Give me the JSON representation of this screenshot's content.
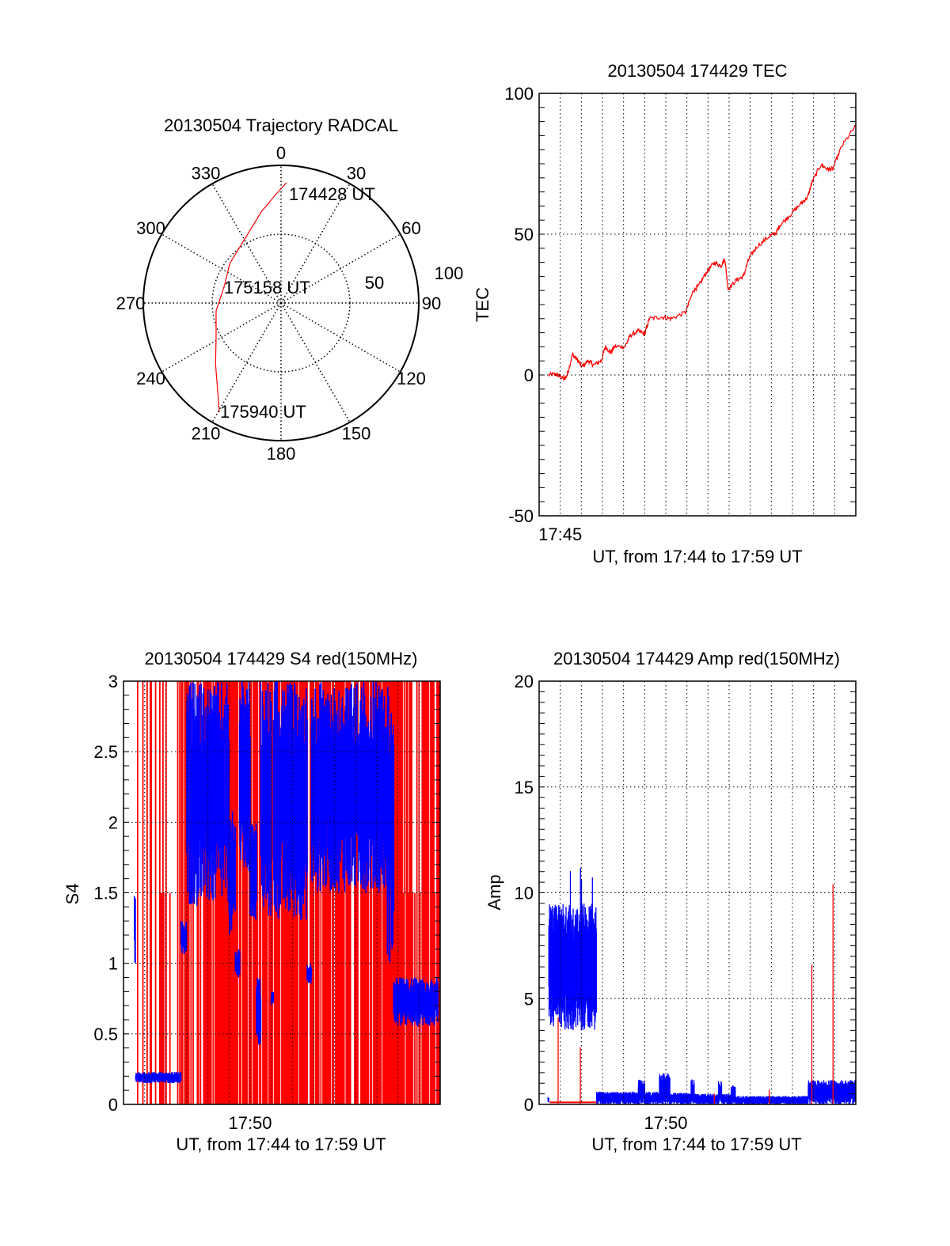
{
  "colors": {
    "primary_series": "#ff0000",
    "secondary_series": "#0000ff",
    "axes": "#000000"
  },
  "chart_data": [
    {
      "id": "trajectory",
      "type": "polar",
      "title": "20130504 Trajectory RADCAL",
      "angle_tick_labels": [
        "0",
        "30",
        "60",
        "90",
        "120",
        "150",
        "180",
        "210",
        "240",
        "270",
        "300",
        "330"
      ],
      "angle_ticks_deg": [
        0,
        30,
        60,
        90,
        120,
        150,
        180,
        210,
        240,
        270,
        300,
        330
      ],
      "radial_tick_labels": [
        "50",
        "100"
      ],
      "rlim": [
        0,
        100
      ],
      "grid": true,
      "trajectory": {
        "color": "#ff0000",
        "points": [
          {
            "az": 2.6,
            "r": 87.5
          },
          {
            "az": 356.6,
            "r": 78
          },
          {
            "az": 348,
            "r": 68
          },
          {
            "az": 331.5,
            "r": 54
          },
          {
            "az": 307.6,
            "r": 47
          },
          {
            "az": 288,
            "r": 43
          },
          {
            "az": 263,
            "r": 47.5
          },
          {
            "az": 241.8,
            "r": 53.5
          },
          {
            "az": 227,
            "r": 65
          },
          {
            "az": 209.5,
            "r": 91
          }
        ],
        "annotations": [
          "174428 UT",
          "175158 UT",
          "175940 UT"
        ]
      }
    },
    {
      "id": "tec",
      "type": "line",
      "title": "20130504 174429 TEC",
      "xlabel": "UT, from 17:44 to 17:59 UT",
      "ylabel": "TEC",
      "x_unit": "minutes after 17:44",
      "xlim": [
        0,
        15
      ],
      "ylim": [
        -50,
        100
      ],
      "y_ticks": [
        -50,
        0,
        50,
        100
      ],
      "y_tick_labels": [
        "-50",
        "0",
        "50",
        "100"
      ],
      "y_minor_step": 5,
      "x_ticks": [
        1
      ],
      "x_tick_labels": [
        "17:45"
      ],
      "grid": true,
      "series": [
        {
          "name": "TEC",
          "color": "#ff0000",
          "x": [
            0.46,
            0.8,
            1.0,
            1.21,
            1.33,
            1.58,
            1.8,
            2.02,
            2.33,
            2.58,
            2.95,
            3.14,
            3.39,
            3.57,
            4.07,
            4.32,
            4.69,
            5.0,
            5.22,
            5.81,
            6.25,
            6.93,
            7.31,
            7.56,
            7.93,
            8.3,
            8.61,
            8.8,
            8.95,
            9.36,
            9.67,
            9.92,
            10.29,
            10.91,
            11.22,
            11.41,
            11.91,
            12.41,
            12.72,
            12.91,
            13.35,
            13.66,
            13.91,
            14.34,
            15.0
          ],
          "y": [
            0,
            0.3,
            -0.5,
            -1.5,
            0,
            7.3,
            5.5,
            2.9,
            5.1,
            3.5,
            5.1,
            10.1,
            7.9,
            10.1,
            10.1,
            14,
            15.6,
            14.5,
            20,
            20.6,
            20,
            22.2,
            30,
            31.6,
            36.6,
            39.9,
            38.8,
            41.2,
            30.5,
            33.8,
            34.9,
            41,
            45.4,
            49.3,
            50.4,
            53.2,
            57,
            60.9,
            63.1,
            68.1,
            74.7,
            73.1,
            73.1,
            81.3,
            88.5
          ]
        }
      ]
    },
    {
      "id": "s4",
      "type": "bar",
      "title": "20130504 174429 S4 red(150MHz)",
      "xlabel": "UT, from 17:44 to 17:59 UT",
      "ylabel": "S4",
      "x_unit": "minutes after 17:44",
      "xlim": [
        0,
        15
      ],
      "ylim": [
        0,
        3
      ],
      "y_ticks": [
        0,
        0.5,
        1,
        1.5,
        2,
        2.5,
        3
      ],
      "y_tick_labels": [
        "0",
        "0.5",
        "1",
        "1.5",
        "2",
        "2.5",
        "3"
      ],
      "y_minor_step": 0.1,
      "x_ticks": [
        6
      ],
      "x_tick_labels": [
        "17:50"
      ],
      "grid": true,
      "series": [
        {
          "name": "red",
          "color": "#ff0000",
          "style": "vertical-lines",
          "bands": [
            {
              "t0": 0.52,
              "t1": 2.75,
              "density": 0.3,
              "top": 3
            },
            {
              "t0": 1.4,
              "t1": 2.2,
              "density": 0.3,
              "top": 1.5
            },
            {
              "t0": 2.75,
              "t1": 6.8,
              "density": 0.75,
              "top": 3
            },
            {
              "t0": 6.8,
              "t1": 15,
              "density": 0.78,
              "top": 3
            },
            {
              "t0": 12.4,
              "t1": 14.8,
              "density": 0.5,
              "top": 1.5
            }
          ]
        },
        {
          "name": "blue",
          "color": "#0000ff",
          "style": "envelope",
          "segments": [
            {
              "t0": 0.52,
              "t1": 0.58,
              "lo": 1.0,
              "hi": 1.57
            },
            {
              "t0": 0.58,
              "t1": 2.73,
              "lo": 0.15,
              "hi": 0.23
            },
            {
              "t0": 2.73,
              "t1": 3.0,
              "lo": 1.05,
              "hi": 1.3
            },
            {
              "t0": 3.0,
              "t1": 5.0,
              "lo": 1.4,
              "hi": 3.0
            },
            {
              "t0": 5.0,
              "t1": 5.3,
              "lo": 1.2,
              "hi": 2.1
            },
            {
              "t0": 5.3,
              "t1": 5.5,
              "lo": 0.9,
              "hi": 1.1
            },
            {
              "t0": 5.5,
              "t1": 6.0,
              "lo": 1.6,
              "hi": 3.0
            },
            {
              "t0": 6.0,
              "t1": 6.3,
              "lo": 1.3,
              "hi": 2.0
            },
            {
              "t0": 6.3,
              "t1": 6.5,
              "lo": 0.4,
              "hi": 0.9
            },
            {
              "t0": 6.5,
              "t1": 7.0,
              "lo": 1.3,
              "hi": 3.0
            },
            {
              "t0": 7.0,
              "t1": 7.1,
              "lo": 0.7,
              "hi": 0.8
            },
            {
              "t0": 7.1,
              "t1": 8.7,
              "lo": 1.3,
              "hi": 3.0
            },
            {
              "t0": 8.7,
              "t1": 8.9,
              "lo": 0.85,
              "hi": 1.0
            },
            {
              "t0": 8.9,
              "t1": 12.5,
              "lo": 1.5,
              "hi": 3.0
            },
            {
              "t0": 12.5,
              "t1": 12.8,
              "lo": 1.0,
              "hi": 3.0
            },
            {
              "t0": 12.8,
              "t1": 14.9,
              "lo": 0.55,
              "hi": 0.9
            }
          ]
        }
      ]
    },
    {
      "id": "amp",
      "type": "bar",
      "title": "20130504 174429 Amp red(150MHz)",
      "xlabel": "UT, from 17:44 to 17:59 UT",
      "ylabel": "Amp",
      "x_unit": "minutes after 17:44",
      "xlim": [
        0,
        15
      ],
      "ylim": [
        0,
        20
      ],
      "y_ticks": [
        0,
        5,
        10,
        15,
        20
      ],
      "y_tick_labels": [
        "0",
        "5",
        "10",
        "15",
        "20"
      ],
      "y_minor_step": 0.5,
      "x_ticks": [
        6
      ],
      "x_tick_labels": [
        "17:50"
      ],
      "grid": true,
      "series": [
        {
          "name": "blue",
          "color": "#0000ff",
          "style": "envelope",
          "segments": [
            {
              "t0": 0.42,
              "t1": 0.46,
              "lo": 0,
              "hi": 0.4
            },
            {
              "t0": 0.46,
              "t1": 2.72,
              "lo": 3.5,
              "hi": 9.5,
              "peak": 11.3
            },
            {
              "t0": 2.72,
              "t1": 4.7,
              "lo": 0,
              "hi": 0.6
            },
            {
              "t0": 4.7,
              "t1": 5.0,
              "lo": 0,
              "hi": 1.2
            },
            {
              "t0": 5.0,
              "t1": 5.7,
              "lo": 0,
              "hi": 0.6
            },
            {
              "t0": 5.7,
              "t1": 6.2,
              "lo": 0,
              "hi": 1.5
            },
            {
              "t0": 6.2,
              "t1": 7.2,
              "lo": 0,
              "hi": 0.55
            },
            {
              "t0": 7.2,
              "t1": 7.35,
              "lo": 0,
              "hi": 1.2
            },
            {
              "t0": 7.35,
              "t1": 8.5,
              "lo": 0,
              "hi": 0.5
            },
            {
              "t0": 8.5,
              "t1": 8.65,
              "lo": 0,
              "hi": 1.1
            },
            {
              "t0": 8.65,
              "t1": 9.1,
              "lo": 0,
              "hi": 0.5
            },
            {
              "t0": 9.1,
              "t1": 9.3,
              "lo": 0,
              "hi": 0.9
            },
            {
              "t0": 9.3,
              "t1": 12.75,
              "lo": 0,
              "hi": 0.4
            },
            {
              "t0": 12.75,
              "t1": 15,
              "lo": 0,
              "hi": 1.15
            }
          ]
        },
        {
          "name": "red",
          "color": "#ff0000",
          "style": "spikes",
          "baseline": {
            "t0": 0.5,
            "t1": 2.72,
            "value": 0.1
          },
          "spikes": [
            {
              "t": 0.9,
              "v": 4.1
            },
            {
              "t": 1.95,
              "v": 2.7
            },
            {
              "t": 8.3,
              "v": 0.5
            },
            {
              "t": 10.9,
              "v": 0.7
            },
            {
              "t": 12.92,
              "v": 6.6
            },
            {
              "t": 13.92,
              "v": 10.4
            }
          ]
        }
      ]
    }
  ]
}
